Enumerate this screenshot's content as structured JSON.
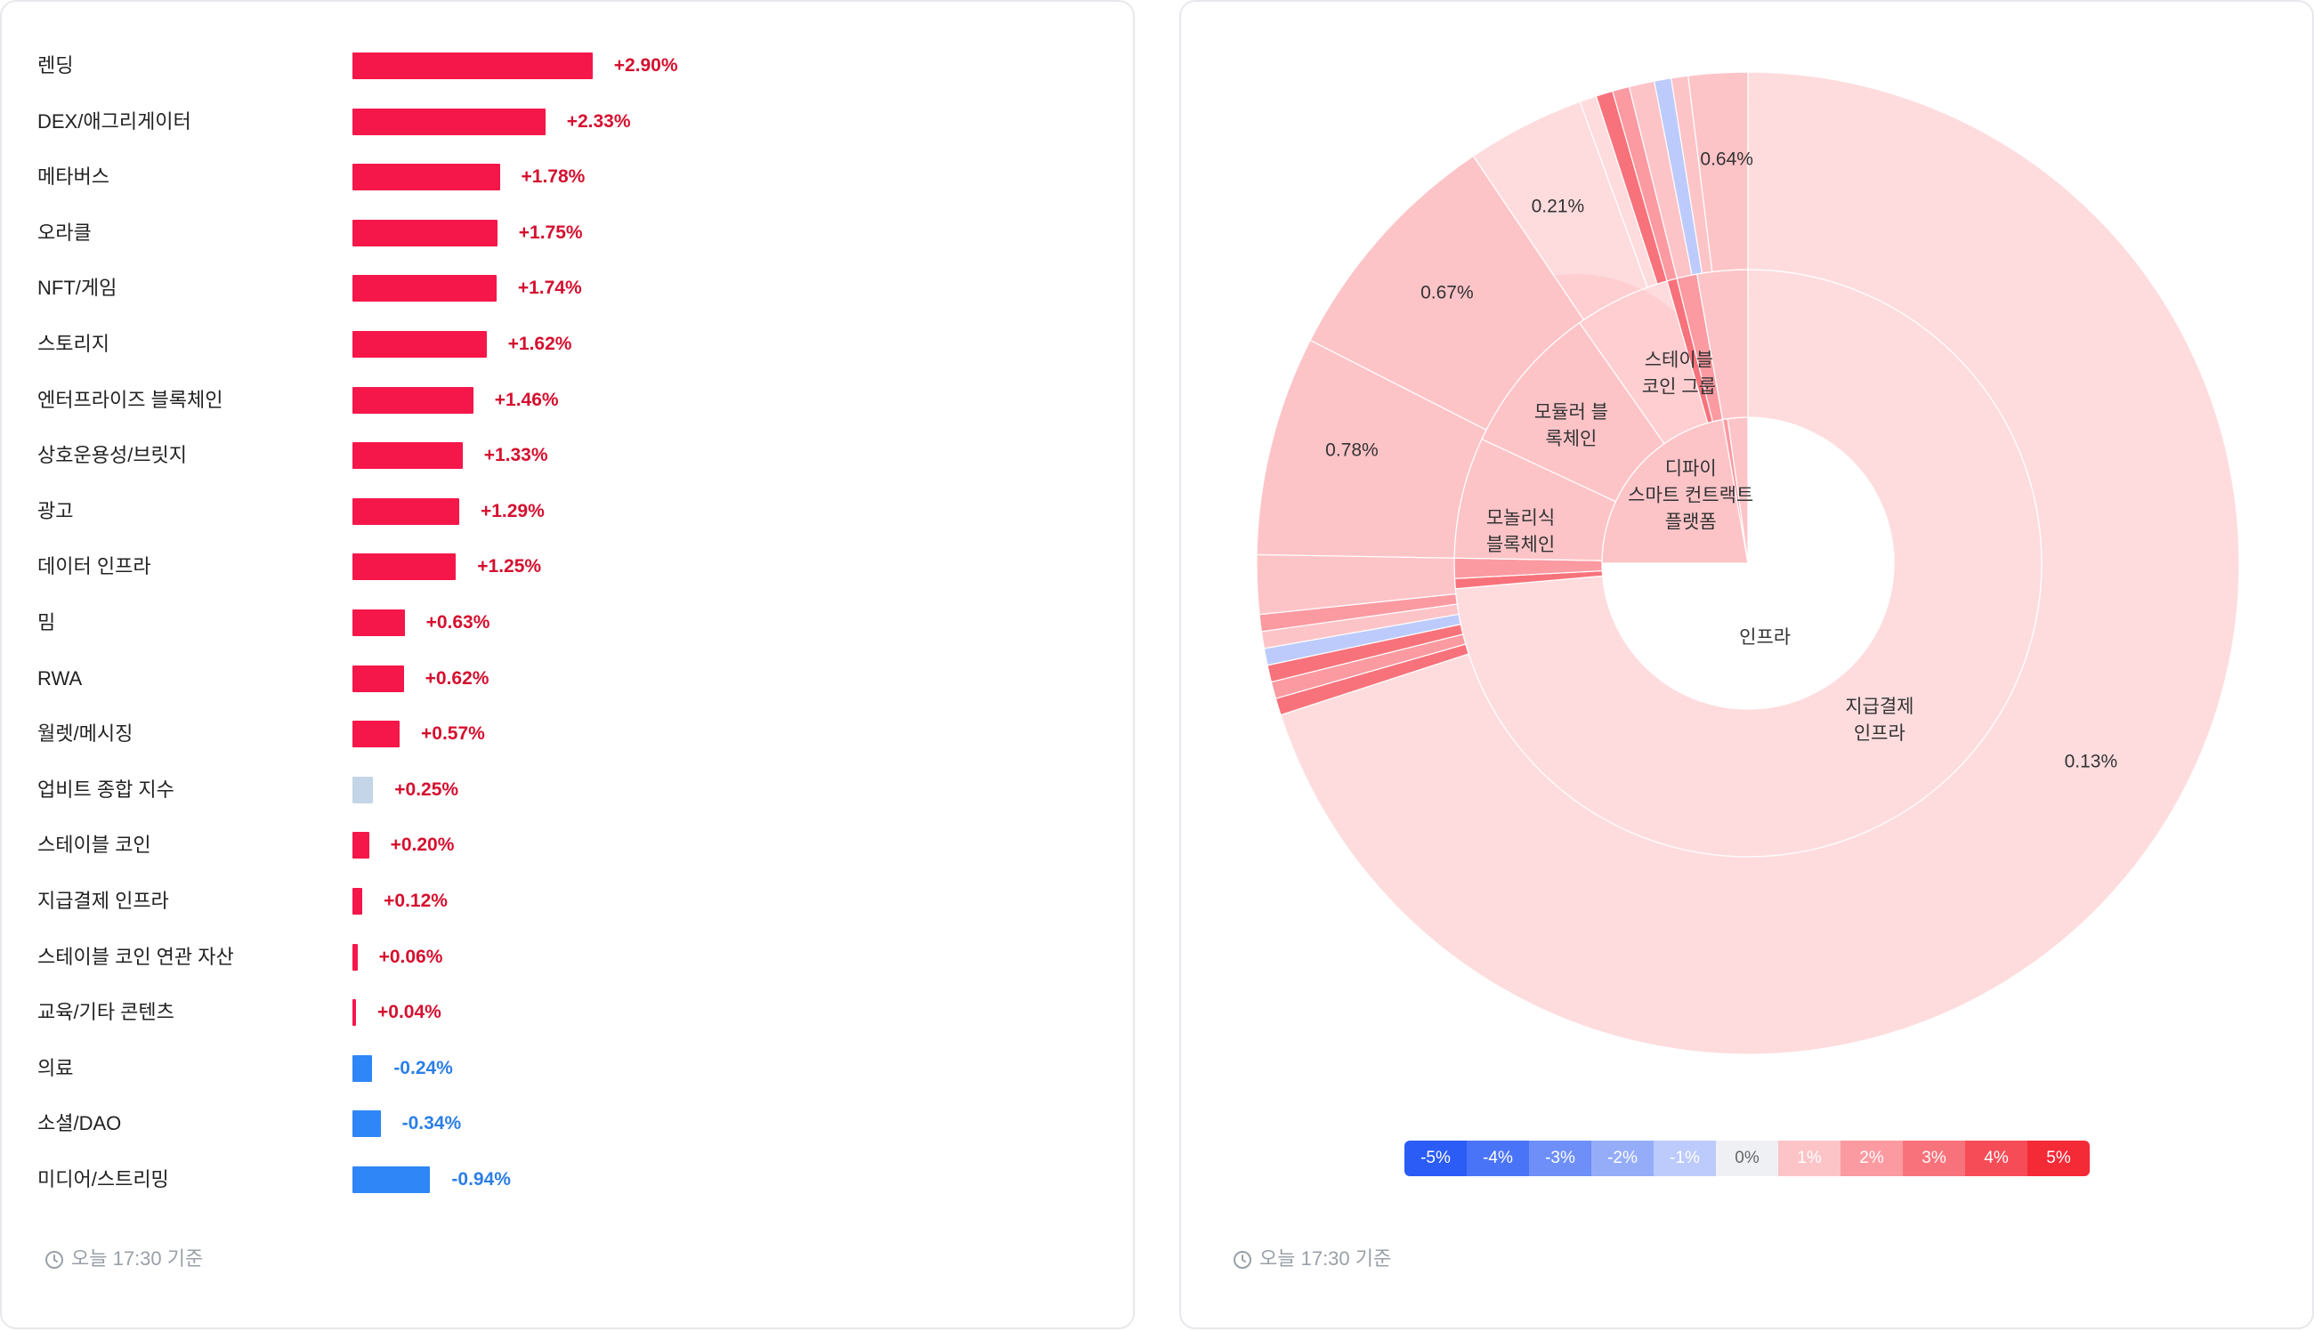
{
  "left_panel": {
    "footer_time": "오늘 17:30 기준"
  },
  "right_panel": {
    "footer_time": "오늘 17:30 기준",
    "color_scale": [
      "-5%",
      "-4%",
      "-3%",
      "-2%",
      "-1%",
      "0%",
      "1%",
      "2%",
      "3%",
      "4%",
      "5%"
    ],
    "scale_colors": [
      "#2b5cf5",
      "#4a74f7",
      "#6e8ff8",
      "#95adf9",
      "#bccbfb",
      "#eef0f4",
      "#fdc4c8",
      "#fb9aa1",
      "#f8727b",
      "#f64c57",
      "#f42a37"
    ]
  },
  "colors": {
    "positive_bar": "#f5174a",
    "negative_bar": "#2f86f6",
    "index_bar": "#c3d5e6",
    "positive_text": "#d5102f",
    "negative_text": "#2b7fe6"
  },
  "chart_data": [
    {
      "type": "bar",
      "orientation": "horizontal",
      "categories": [
        "렌딩",
        "DEX/애그리게이터",
        "메타버스",
        "오라클",
        "NFT/게임",
        "스토리지",
        "엔터프라이즈 블록체인",
        "상호운용성/브릿지",
        "광고",
        "데이터 인프라",
        "밈",
        "RWA",
        "월렛/메시징",
        "업비트 종합 지수",
        "스테이블 코인",
        "지급결제 인프라",
        "스테이블 코인 연관 자산",
        "교육/기타 콘텐츠",
        "의료",
        "소셜/DAO",
        "미디어/스트리밍"
      ],
      "values": [
        2.9,
        2.33,
        1.78,
        1.75,
        1.74,
        1.62,
        1.46,
        1.33,
        1.29,
        1.25,
        0.63,
        0.62,
        0.57,
        0.25,
        0.2,
        0.12,
        0.06,
        0.04,
        -0.24,
        -0.34,
        -0.94
      ],
      "value_labels": [
        "+2.90%",
        "+2.33%",
        "+1.78%",
        "+1.75%",
        "+1.74%",
        "+1.62%",
        "+1.46%",
        "+1.33%",
        "+1.29%",
        "+1.25%",
        "+0.63%",
        "+0.62%",
        "+0.57%",
        "+0.25%",
        "+0.20%",
        "+0.12%",
        "+0.06%",
        "+0.04%",
        "-0.24%",
        "-0.34%",
        "-0.94%"
      ],
      "highlight_category": "업비트 종합 지수",
      "unit": "%"
    },
    {
      "type": "sunburst",
      "inner_labels": [
        "인프라",
        "디파이\n스마트 컨트랙트\n플랫폼"
      ],
      "middle_labels": [
        "지급결제\n인프라",
        "모놀리식\n블록체인",
        "모듈러 블\n록체인",
        "스테이블\n코인 그룹"
      ],
      "outer_labels": [
        "0.13%",
        "0.78%",
        "0.67%",
        "0.21%",
        "0.64%"
      ],
      "color_scale_range": [
        -5,
        5
      ]
    }
  ]
}
